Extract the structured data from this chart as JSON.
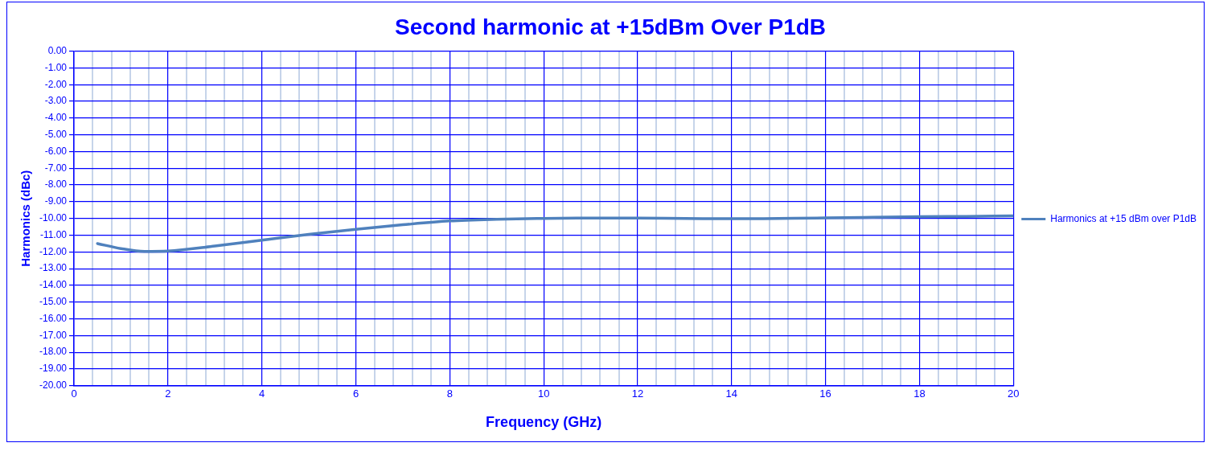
{
  "chart_data": {
    "type": "line",
    "title": "Second harmonic at +15dBm Over P1dB",
    "xlabel": "Frequency (GHz)",
    "ylabel": "Harmonics (dBc)",
    "series": [
      {
        "name": "Harmonics at +15 dBm over P1dB",
        "color": "#4f81bd",
        "x": [
          0.5,
          1,
          1.5,
          2,
          3,
          4,
          5,
          6,
          7,
          8,
          9,
          10,
          11,
          12,
          13,
          14,
          15,
          16,
          17,
          18,
          19,
          20
        ],
        "values": [
          -11.5,
          -11.8,
          -11.97,
          -11.95,
          -11.65,
          -11.3,
          -10.95,
          -10.65,
          -10.38,
          -10.15,
          -10.05,
          -10.0,
          -9.98,
          -9.98,
          -10.0,
          -10.02,
          -10.0,
          -9.97,
          -9.93,
          -9.9,
          -9.88,
          -9.85
        ]
      }
    ],
    "xlim": [
      0,
      20
    ],
    "xticks": [
      0,
      {
        "value": 0.4,
        "label": null
      },
      {
        "value": 0.8,
        "label": null
      },
      {
        "value": 1.2,
        "label": null
      },
      {
        "value": 1.6,
        "label": null
      },
      2,
      {
        "value": 2.4,
        "label": null
      },
      {
        "value": 2.8,
        "label": null
      },
      {
        "value": 3.2,
        "label": null
      },
      {
        "value": 3.6,
        "label": null
      },
      4,
      {
        "value": 4.4,
        "label": null
      },
      {
        "value": 4.8,
        "label": null
      },
      {
        "value": 5.2,
        "label": null
      },
      {
        "value": 5.6,
        "label": null
      },
      6,
      {
        "value": 6.4,
        "label": null
      },
      {
        "value": 6.8,
        "label": null
      },
      {
        "value": 7.2,
        "label": null
      },
      {
        "value": 7.6,
        "label": null
      },
      8,
      {
        "value": 8.4,
        "label": null
      },
      {
        "value": 8.8,
        "label": null
      },
      {
        "value": 9.2,
        "label": null
      },
      {
        "value": 9.6,
        "label": null
      },
      10,
      {
        "value": 10.4,
        "label": null
      },
      {
        "value": 10.8,
        "label": null
      },
      {
        "value": 11.2,
        "label": null
      },
      {
        "value": 11.6,
        "label": null
      },
      12,
      {
        "value": 12.4,
        "label": null
      },
      {
        "value": 12.8,
        "label": null
      },
      {
        "value": 13.2,
        "label": null
      },
      {
        "value": 13.6,
        "label": null
      },
      14,
      {
        "value": 14.4,
        "label": null
      },
      {
        "value": 14.8,
        "label": null
      },
      {
        "value": 15.2,
        "label": null
      },
      {
        "value": 15.6,
        "label": null
      },
      16,
      {
        "value": 16.4,
        "label": null
      },
      {
        "value": 16.8,
        "label": null
      },
      {
        "value": 17.2,
        "label": null
      },
      {
        "value": 17.6,
        "label": null
      },
      18,
      {
        "value": 18.4,
        "label": null
      },
      {
        "value": 18.8,
        "label": null
      },
      {
        "value": 19.2,
        "label": null
      },
      {
        "value": 19.6,
        "label": null
      },
      20
    ],
    "ylim": [
      -20,
      0
    ],
    "yticks": [
      {
        "value": 0,
        "label": "0.00"
      },
      {
        "value": -1,
        "label": "-1.00"
      },
      {
        "value": -2,
        "label": "-2.00"
      },
      {
        "value": -3,
        "label": "-3.00"
      },
      {
        "value": -4,
        "label": "-4.00"
      },
      {
        "value": -5,
        "label": "-5.00"
      },
      {
        "value": -6,
        "label": "-6.00"
      },
      {
        "value": -7,
        "label": "-7.00"
      },
      {
        "value": -8,
        "label": "-8.00"
      },
      {
        "value": -9,
        "label": "-9.00"
      },
      {
        "value": -10,
        "label": "-10.00"
      },
      {
        "value": -11,
        "label": "-11.00"
      },
      {
        "value": -12,
        "label": "-12.00"
      },
      {
        "value": -13,
        "label": "-13.00"
      },
      {
        "value": -14,
        "label": "-14.00"
      },
      {
        "value": -15,
        "label": "-15.00"
      },
      {
        "value": -16,
        "label": "-16.00"
      },
      {
        "value": -17,
        "label": "-17.00"
      },
      {
        "value": -18,
        "label": "-18.00"
      },
      {
        "value": -19,
        "label": "-19.00"
      },
      {
        "value": -20,
        "label": "-20.00"
      }
    ],
    "grid": true,
    "legend": "right",
    "marker": "none",
    "line_style": "solid"
  }
}
